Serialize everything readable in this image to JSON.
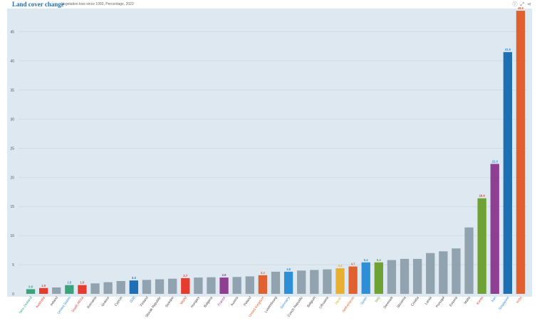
{
  "header": {
    "title": "Land cover change",
    "subtitle": "Vegetation loss since 1992, Percentage, 2022"
  },
  "toolbar": {
    "info_icon": "info-icon",
    "expand_icon": "expand-icon",
    "share_icon": "share-icon"
  },
  "colors": {
    "grey": "#92a3b0",
    "red": "#e63c2f",
    "green": "#3aa37a",
    "blue": "#2f8fd6",
    "darkblue": "#1f6fb4",
    "purple": "#8f3f91",
    "orange": "#e06030",
    "yellow": "#e8b030",
    "olive": "#6ea234",
    "bg": "#dde8f1",
    "grid": "#c5d4e0"
  },
  "chart_data": {
    "type": "bar",
    "title": "Land cover change",
    "subtitle": "Vegetation loss since 1992, Percentage, 2022",
    "ylim": [
      0,
      48
    ],
    "yticks": [
      0,
      5,
      10,
      15,
      20,
      25,
      30,
      35,
      40,
      45
    ],
    "grid": true,
    "categories": [
      "New Zealand",
      "Australia",
      "Ireland",
      "United States",
      "South Africa",
      "Romania",
      "Greece",
      "Cyprus",
      "G20",
      "Finland",
      "Slovak Republic",
      "Sweden",
      "World",
      "Hungary",
      "Bulgaria",
      "France",
      "Austria",
      "Poland",
      "United Kingdom",
      "Luxembourg",
      "Germany",
      "Czech Republic",
      "Belgium",
      "Lithuania",
      "Japan",
      "Netherlands",
      "Spain",
      "Italy",
      "Denmark",
      "Slovenia",
      "Croatia",
      "Latvia",
      "Portugal",
      "Estonia",
      "Malta",
      "Korea",
      "Iran",
      "Singapore",
      "India"
    ],
    "values": [
      0.8,
      1.0,
      1.1,
      1.5,
      1.5,
      1.8,
      2.0,
      2.2,
      2.3,
      2.4,
      2.5,
      2.6,
      2.7,
      2.8,
      2.85,
      2.8,
      2.9,
      3.0,
      3.2,
      3.8,
      3.8,
      4.0,
      4.1,
      4.2,
      4.4,
      4.7,
      5.4,
      5.4,
      5.8,
      6.0,
      6.0,
      7.0,
      7.3,
      7.8,
      11.4,
      16.4,
      22.3,
      41.5,
      48.6
    ],
    "labels": [
      "0.8",
      "1.0",
      "",
      "1.5",
      "1.5",
      "",
      "",
      "",
      "2.3",
      "",
      "",
      "",
      "2.7",
      "",
      "",
      "2.8",
      "",
      "",
      "3.2",
      "",
      "3.8",
      "",
      "",
      "",
      "4.4",
      "4.7",
      "5.4",
      "5.4",
      "",
      "",
      "",
      "",
      "",
      "",
      "",
      "16.4",
      "22.3",
      "41.5",
      "48.6"
    ],
    "bar_colors": [
      "green",
      "red",
      "grey",
      "green",
      "red",
      "grey",
      "grey",
      "grey",
      "darkblue",
      "grey",
      "grey",
      "grey",
      "red",
      "grey",
      "grey",
      "purple",
      "grey",
      "grey",
      "orange",
      "grey",
      "blue",
      "grey",
      "grey",
      "grey",
      "yellow",
      "orange",
      "blue",
      "olive",
      "grey",
      "grey",
      "grey",
      "grey",
      "grey",
      "grey",
      "grey",
      "olive",
      "purple",
      "darkblue",
      "orange"
    ],
    "label_colors": [
      "green",
      "red",
      "grey",
      "blue",
      "red",
      "grey",
      "grey",
      "grey",
      "darkblue",
      "grey",
      "grey",
      "grey",
      "red",
      "grey",
      "grey",
      "purple",
      "grey",
      "grey",
      "orange",
      "grey",
      "blue",
      "grey",
      "grey",
      "grey",
      "yellow",
      "orange",
      "blue",
      "olive",
      "grey",
      "grey",
      "grey",
      "grey",
      "grey",
      "grey",
      "grey",
      "red",
      "blue",
      "blue",
      "orange"
    ]
  }
}
